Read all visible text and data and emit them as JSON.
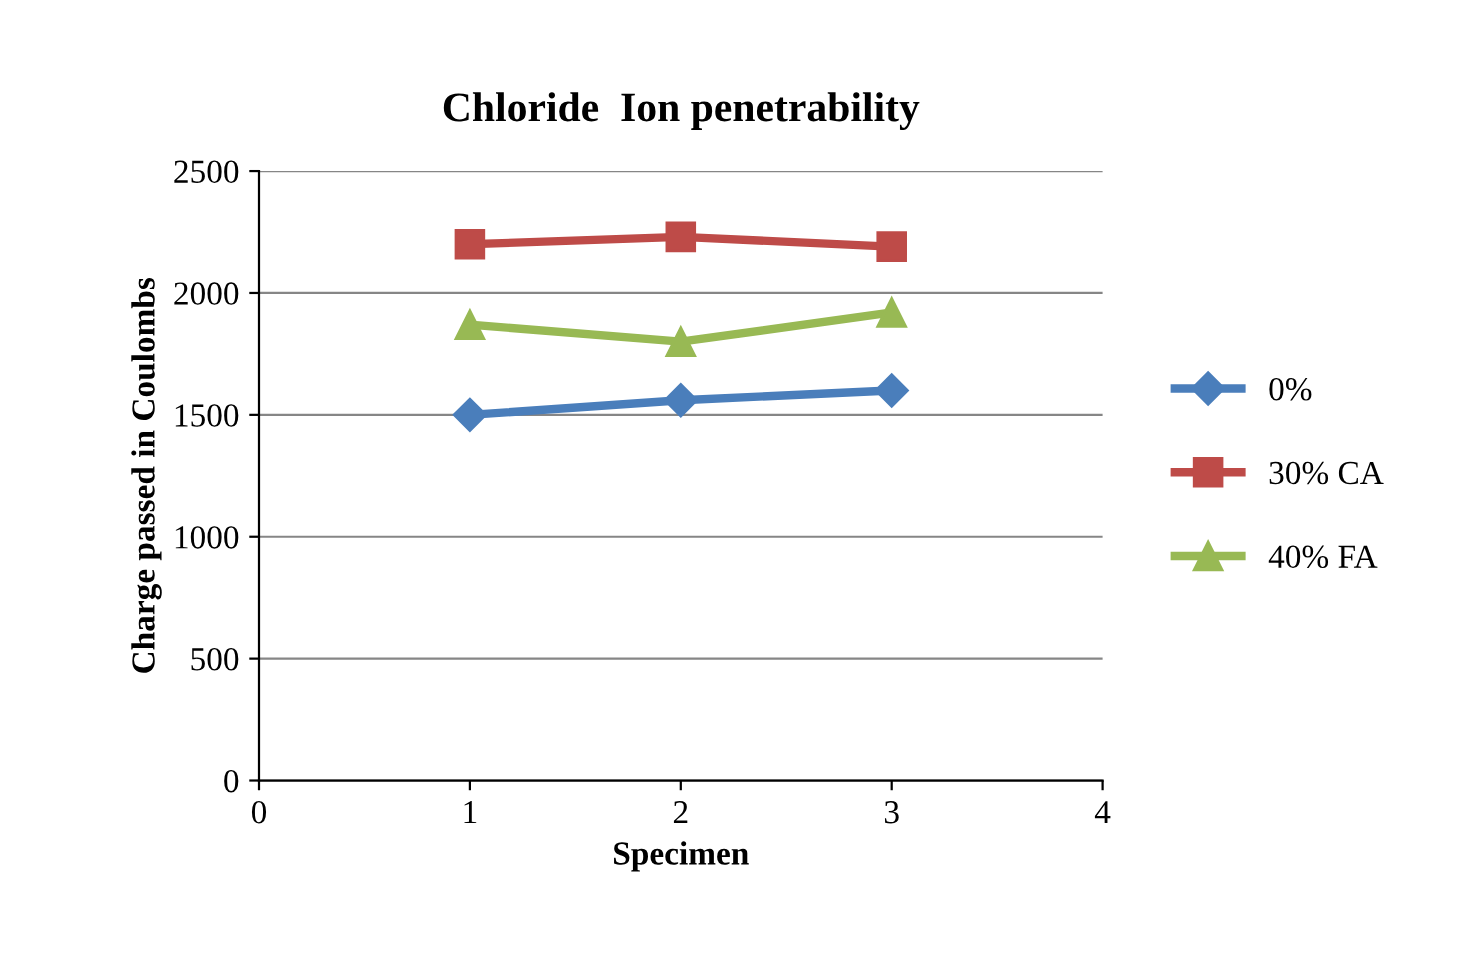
{
  "chart_data": {
    "type": "line",
    "title": "Chloride  Ion penetrability",
    "xlabel": "Specimen",
    "ylabel": "Charge passed in Coulombs",
    "x": [
      1,
      2,
      3
    ],
    "series": [
      {
        "name": "0%",
        "color": "#4a7ebb",
        "marker": "diamond",
        "values": [
          1500,
          1560,
          1600
        ]
      },
      {
        "name": "30% CA",
        "color": "#be4b48",
        "marker": "square",
        "values": [
          2200,
          2230,
          2190
        ]
      },
      {
        "name": "40% FA",
        "color": "#98b954",
        "marker": "triangle",
        "values": [
          1870,
          1800,
          1920
        ]
      }
    ],
    "xlim": [
      0,
      4
    ],
    "xticks": [
      0,
      1,
      2,
      3,
      4
    ],
    "ylim": [
      0,
      2500
    ],
    "yticks": [
      0,
      500,
      1000,
      1500,
      2000,
      2500
    ],
    "grid": "y",
    "legend": "right",
    "line_style": "solid"
  }
}
